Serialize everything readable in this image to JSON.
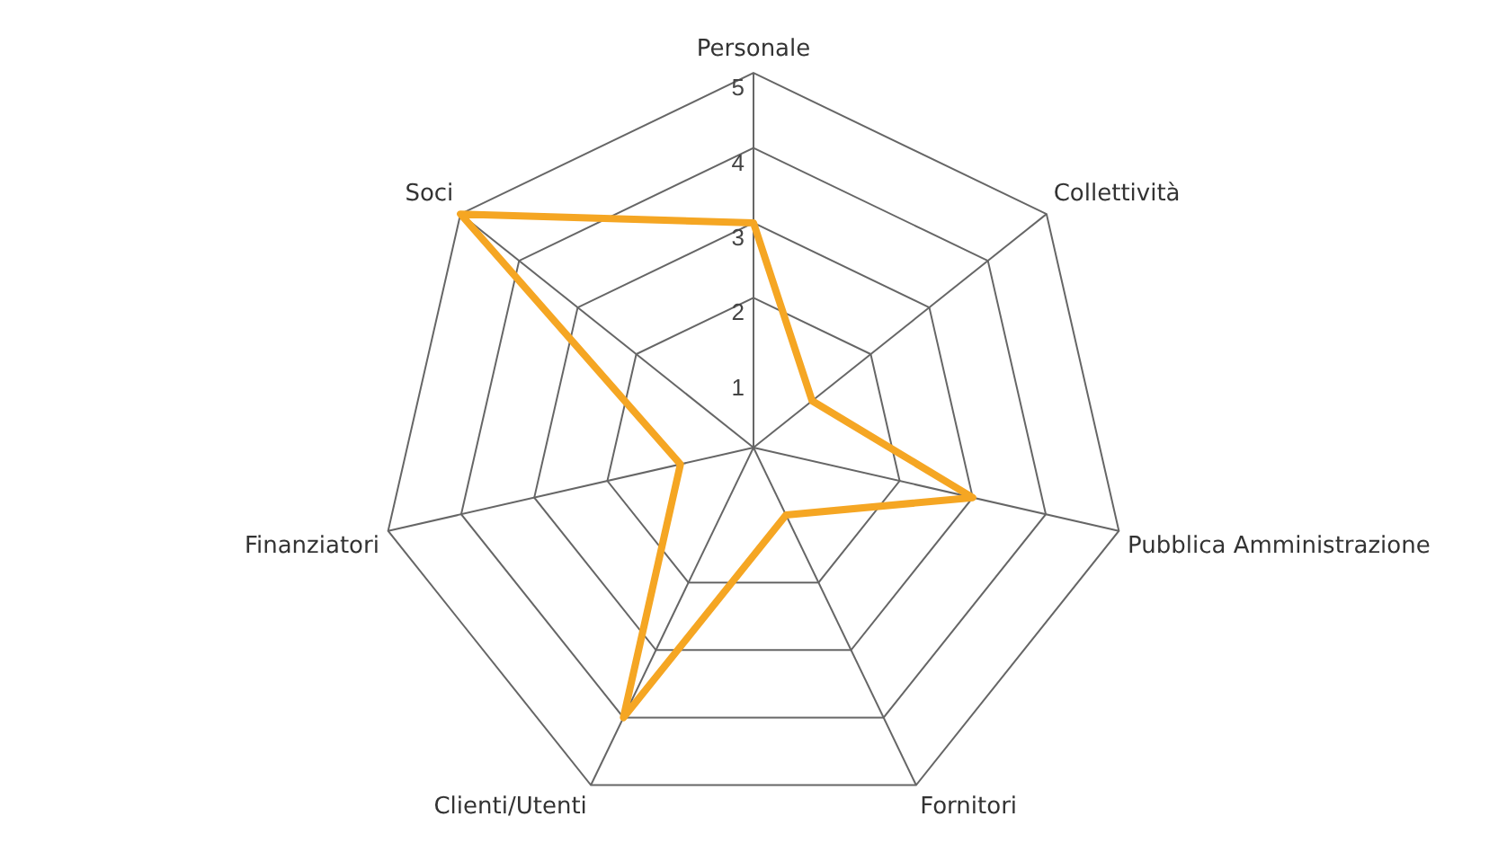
{
  "chart_data": {
    "type": "radar",
    "categories": [
      "Personale",
      "Collettività",
      "Pubblica Amministrazione",
      "Fornitori",
      "Clienti/Utenti",
      "Finanziatori",
      "Soci"
    ],
    "series": [
      {
        "color": "#f5a623",
        "values": [
          3,
          1,
          3,
          1,
          4,
          1,
          5
        ]
      }
    ],
    "ylim": [
      0,
      5
    ],
    "yticks": [
      1,
      2,
      3,
      4,
      5
    ],
    "grid": true,
    "marker": "none",
    "legend": false
  }
}
